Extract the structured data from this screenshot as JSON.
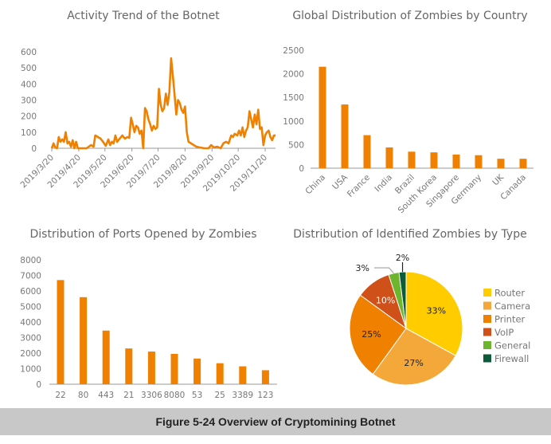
{
  "caption": "Figure 5-24 Overview of Cryptomining Botnet",
  "colors": {
    "accent": "#F08000",
    "axis": "#999999"
  },
  "chart_data": [
    {
      "type": "line",
      "title": "Activity Trend of the Botnet",
      "xlabel": "",
      "ylabel": "",
      "ylim": [
        0,
        600
      ],
      "yticks": [
        0,
        100,
        200,
        300,
        400,
        500,
        600
      ],
      "xtick_labels": [
        "2019/3/20",
        "2019/4/20",
        "2019/5/20",
        "2019/6/20",
        "2019/7/20",
        "2019/8/20",
        "2019/9/20",
        "2019/10/20",
        "2019/11/20"
      ],
      "xtick_days": [
        0,
        31,
        61,
        92,
        122,
        153,
        184,
        214,
        245
      ],
      "x_unit": "days since 2019/3/20",
      "x": [
        0,
        2,
        4,
        6,
        8,
        10,
        12,
        14,
        16,
        18,
        20,
        22,
        24,
        26,
        28,
        30,
        35,
        40,
        45,
        48,
        50,
        53,
        56,
        59,
        62,
        65,
        67,
        69,
        71,
        73,
        75,
        78,
        81,
        84,
        87,
        89,
        91,
        93,
        95,
        97,
        99,
        101,
        103,
        105,
        107,
        109,
        111,
        113,
        115,
        117,
        119,
        121,
        123,
        125,
        127,
        129,
        131,
        133,
        135,
        137,
        139,
        141,
        143,
        145,
        147,
        149,
        151,
        153,
        155,
        157,
        160,
        163,
        166,
        170,
        175,
        180,
        183,
        186,
        190,
        194,
        197,
        200,
        203,
        206,
        208,
        210,
        213,
        215,
        217,
        219,
        221,
        223,
        225,
        227,
        229,
        231,
        233,
        235,
        237,
        239,
        241,
        243,
        245,
        247,
        249,
        251,
        253,
        255,
        257
      ],
      "y": [
        0,
        30,
        5,
        0,
        70,
        40,
        55,
        40,
        100,
        30,
        40,
        10,
        50,
        0,
        40,
        0,
        0,
        0,
        20,
        10,
        80,
        70,
        60,
        40,
        15,
        55,
        20,
        40,
        30,
        80,
        40,
        60,
        80,
        60,
        70,
        65,
        190,
        150,
        100,
        140,
        130,
        90,
        110,
        0,
        250,
        230,
        180,
        150,
        110,
        140,
        120,
        130,
        370,
        270,
        230,
        250,
        340,
        270,
        350,
        560,
        450,
        330,
        210,
        300,
        280,
        240,
        220,
        260,
        100,
        40,
        30,
        20,
        10,
        5,
        0,
        0,
        20,
        5,
        10,
        0,
        30,
        40,
        30,
        80,
        70,
        90,
        80,
        110,
        80,
        130,
        70,
        110,
        130,
        230,
        180,
        130,
        210,
        150,
        240,
        120,
        130,
        20,
        80,
        100,
        110,
        70,
        50,
        80,
        80
      ],
      "color": "#F08000"
    },
    {
      "type": "bar",
      "title": "Global Distribution of Zombies by Country",
      "categories": [
        "China",
        "USA",
        "France",
        "India",
        "Brazil",
        "South Korea",
        "Singapore",
        "Germany",
        "UK",
        "Canada"
      ],
      "values": [
        2150,
        1350,
        700,
        440,
        350,
        335,
        290,
        275,
        200,
        200
      ],
      "ylim": [
        0,
        2500
      ],
      "yticks": [
        0,
        500,
        1000,
        1500,
        2000,
        2500
      ],
      "color": "#F08000"
    },
    {
      "type": "bar",
      "title": "Distribution of Ports Opened by Zombies",
      "categories": [
        "22",
        "80",
        "443",
        "21",
        "3306",
        "8080",
        "53",
        "25",
        "3389",
        "123"
      ],
      "values": [
        6700,
        5600,
        3450,
        2300,
        2100,
        1950,
        1650,
        1350,
        1150,
        900
      ],
      "ylim": [
        0,
        8000
      ],
      "yticks": [
        0,
        1000,
        2000,
        3000,
        4000,
        5000,
        6000,
        7000,
        8000
      ],
      "color": "#F08000"
    },
    {
      "type": "pie",
      "title": "Distribution of Identified Zombies by Type",
      "legend": "right",
      "slices": [
        {
          "label": "Router",
          "value": 33,
          "text": "33%",
          "color": "#FFCC00"
        },
        {
          "label": "Camera",
          "value": 27,
          "text": "27%",
          "color": "#F4A83A"
        },
        {
          "label": "Printer",
          "value": 25,
          "text": "25%",
          "color": "#F08000"
        },
        {
          "label": "VoIP",
          "value": 10,
          "text": "10%",
          "color": "#D0501A"
        },
        {
          "label": "General",
          "value": 3,
          "text": "3%",
          "color": "#6DB52D"
        },
        {
          "label": "Firewall",
          "value": 2,
          "text": "2%",
          "color": "#0B5B3A"
        }
      ]
    }
  ]
}
